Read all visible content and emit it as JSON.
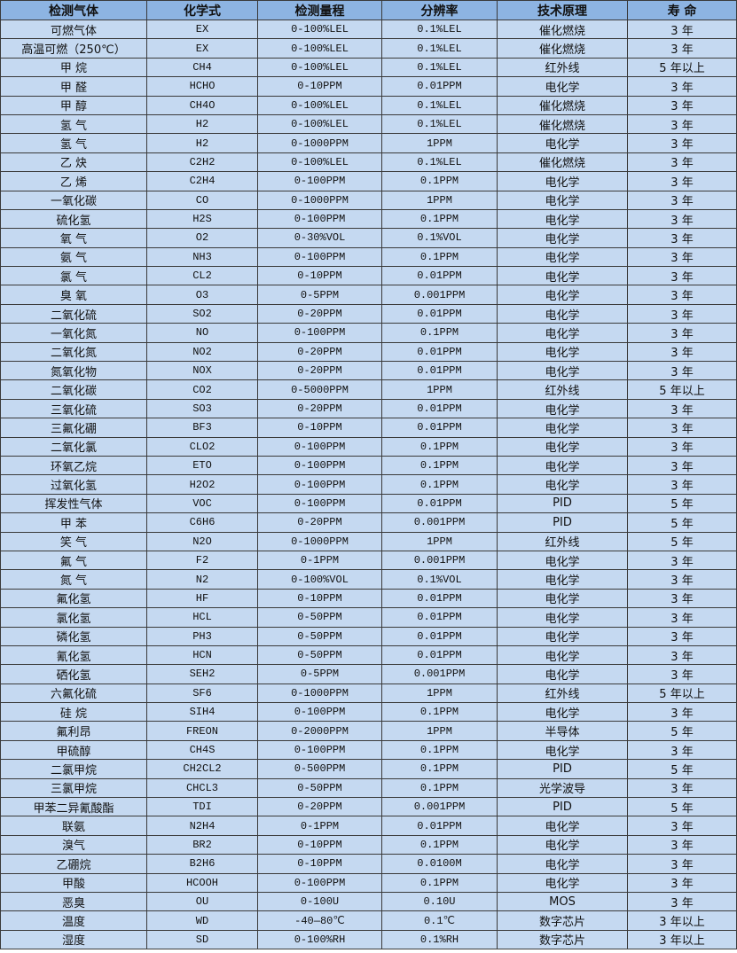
{
  "table": {
    "headers": [
      "检测气体",
      "化学式",
      "检测量程",
      "分辨率",
      "技术原理",
      "寿 命"
    ],
    "rows": [
      [
        "可燃气体",
        "EX",
        "0-100%LEL",
        "0.1%LEL",
        "催化燃烧",
        "3 年"
      ],
      [
        "高温可燃（250℃）",
        "EX",
        "0-100%LEL",
        "0.1%LEL",
        "催化燃烧",
        "3 年"
      ],
      [
        "甲 烷",
        "CH4",
        "0-100%LEL",
        "0.1%LEL",
        "红外线",
        "5 年以上"
      ],
      [
        "甲 醛",
        "HCHO",
        "0-10PPM",
        "0.01PPM",
        "电化学",
        "3 年"
      ],
      [
        "甲 醇",
        "CH4O",
        "0-100%LEL",
        "0.1%LEL",
        "催化燃烧",
        "3 年"
      ],
      [
        "氢 气",
        "H2",
        "0-100%LEL",
        "0.1%LEL",
        "催化燃烧",
        "3 年"
      ],
      [
        "氢 气",
        "H2",
        "0-1000PPM",
        "1PPM",
        "电化学",
        "3 年"
      ],
      [
        "乙 炔",
        "C2H2",
        "0-100%LEL",
        "0.1%LEL",
        "催化燃烧",
        "3 年"
      ],
      [
        "乙 烯",
        "C2H4",
        "0-100PPM",
        "0.1PPM",
        "电化学",
        "3 年"
      ],
      [
        "一氧化碳",
        "CO",
        "0-1000PPM",
        "1PPM",
        "电化学",
        "3 年"
      ],
      [
        "硫化氢",
        "H2S",
        "0-100PPM",
        "0.1PPM",
        "电化学",
        "3 年"
      ],
      [
        "氧 气",
        "O2",
        "0-30%VOL",
        "0.1%VOL",
        "电化学",
        "3 年"
      ],
      [
        "氨 气",
        "NH3",
        "0-100PPM",
        "0.1PPM",
        "电化学",
        "3 年"
      ],
      [
        "氯 气",
        "CL2",
        "0-10PPM",
        "0.01PPM",
        "电化学",
        "3 年"
      ],
      [
        "臭 氧",
        "O3",
        "0-5PPM",
        "0.001PPM",
        "电化学",
        "3 年"
      ],
      [
        "二氧化硫",
        "SO2",
        "0-20PPM",
        "0.01PPM",
        "电化学",
        "3 年"
      ],
      [
        "一氧化氮",
        "NO",
        "0-100PPM",
        "0.1PPM",
        "电化学",
        "3 年"
      ],
      [
        "二氧化氮",
        "NO2",
        "0-20PPM",
        "0.01PPM",
        "电化学",
        "3 年"
      ],
      [
        "氮氧化物",
        "NOX",
        "0-20PPM",
        "0.01PPM",
        "电化学",
        "3 年"
      ],
      [
        "二氧化碳",
        "CO2",
        "0-5000PPM",
        "1PPM",
        "红外线",
        "5 年以上"
      ],
      [
        "三氧化硫",
        "SO3",
        "0-20PPM",
        "0.01PPM",
        "电化学",
        "3 年"
      ],
      [
        "三氟化硼",
        "BF3",
        "0-10PPM",
        "0.01PPM",
        "电化学",
        "3 年"
      ],
      [
        "二氧化氯",
        "CLO2",
        "0-100PPM",
        "0.1PPM",
        "电化学",
        "3 年"
      ],
      [
        "环氧乙烷",
        "ETO",
        "0-100PPM",
        "0.1PPM",
        "电化学",
        "3 年"
      ],
      [
        "过氧化氢",
        "H2O2",
        "0-100PPM",
        "0.1PPM",
        "电化学",
        "3 年"
      ],
      [
        "挥发性气体",
        "VOC",
        "0-100PPM",
        "0.01PPM",
        "PID",
        "5 年"
      ],
      [
        "甲 苯",
        "C6H6",
        "0-20PPM",
        "0.001PPM",
        "PID",
        "5 年"
      ],
      [
        "笑 气",
        "N2O",
        "0-1000PPM",
        "1PPM",
        "红外线",
        "5 年"
      ],
      [
        "氟 气",
        "F2",
        "0-1PPM",
        "0.001PPM",
        "电化学",
        "3 年"
      ],
      [
        "氮 气",
        "N2",
        "0-100%VOL",
        "0.1%VOL",
        "电化学",
        "3 年"
      ],
      [
        "氟化氢",
        "HF",
        "0-10PPM",
        "0.01PPM",
        "电化学",
        "3 年"
      ],
      [
        "氯化氢",
        "HCL",
        "0-50PPM",
        "0.01PPM",
        "电化学",
        "3 年"
      ],
      [
        "磷化氢",
        "PH3",
        "0-50PPM",
        "0.01PPM",
        "电化学",
        "3 年"
      ],
      [
        "氰化氢",
        "HCN",
        "0-50PPM",
        "0.01PPM",
        "电化学",
        "3 年"
      ],
      [
        "硒化氢",
        "SEH2",
        "0-5PPM",
        "0.001PPM",
        "电化学",
        "3 年"
      ],
      [
        "六氟化硫",
        "SF6",
        "0-1000PPM",
        "1PPM",
        "红外线",
        "5 年以上"
      ],
      [
        "硅 烷",
        "SIH4",
        "0-100PPM",
        "0.1PPM",
        "电化学",
        "3 年"
      ],
      [
        "氟利昂",
        "FREON",
        "0-2000PPM",
        "1PPM",
        "半导体",
        "5 年"
      ],
      [
        "甲硫醇",
        "CH4S",
        "0-100PPM",
        "0.1PPM",
        "电化学",
        "3 年"
      ],
      [
        "二氯甲烷",
        "CH2CL2",
        "0-500PPM",
        "0.1PPM",
        "PID",
        "5 年"
      ],
      [
        "三氯甲烷",
        "CHCL3",
        "0-50PPM",
        "0.1PPM",
        "光学波导",
        "3 年"
      ],
      [
        "甲苯二异氰酸酯",
        "TDI",
        "0-20PPM",
        "0.001PPM",
        "PID",
        "5 年"
      ],
      [
        "联氨",
        "N2H4",
        "0-1PPM",
        "0.01PPM",
        "电化学",
        "3 年"
      ],
      [
        "溴气",
        "BR2",
        "0-10PPM",
        "0.1PPM",
        "电化学",
        "3 年"
      ],
      [
        "乙硼烷",
        "B2H6",
        "0-10PPM",
        "0.0100M",
        "电化学",
        "3 年"
      ],
      [
        "甲酸",
        "HCOOH",
        "0-100PPM",
        "0.1PPM",
        "电化学",
        "3 年"
      ],
      [
        "恶臭",
        "OU",
        "0-100U",
        "0.10U",
        "MOS",
        "3 年"
      ],
      [
        "温度",
        "WD",
        "-40—80℃",
        "0.1℃",
        "数字芯片",
        "3 年以上"
      ],
      [
        "湿度",
        "SD",
        "0-100%RH",
        "0.1%RH",
        "数字芯片",
        "3 年以上"
      ]
    ]
  },
  "colors": {
    "header_bg": "#8db4e2",
    "row_bg": "#c5d9f1",
    "border": "#3a3a3a"
  }
}
